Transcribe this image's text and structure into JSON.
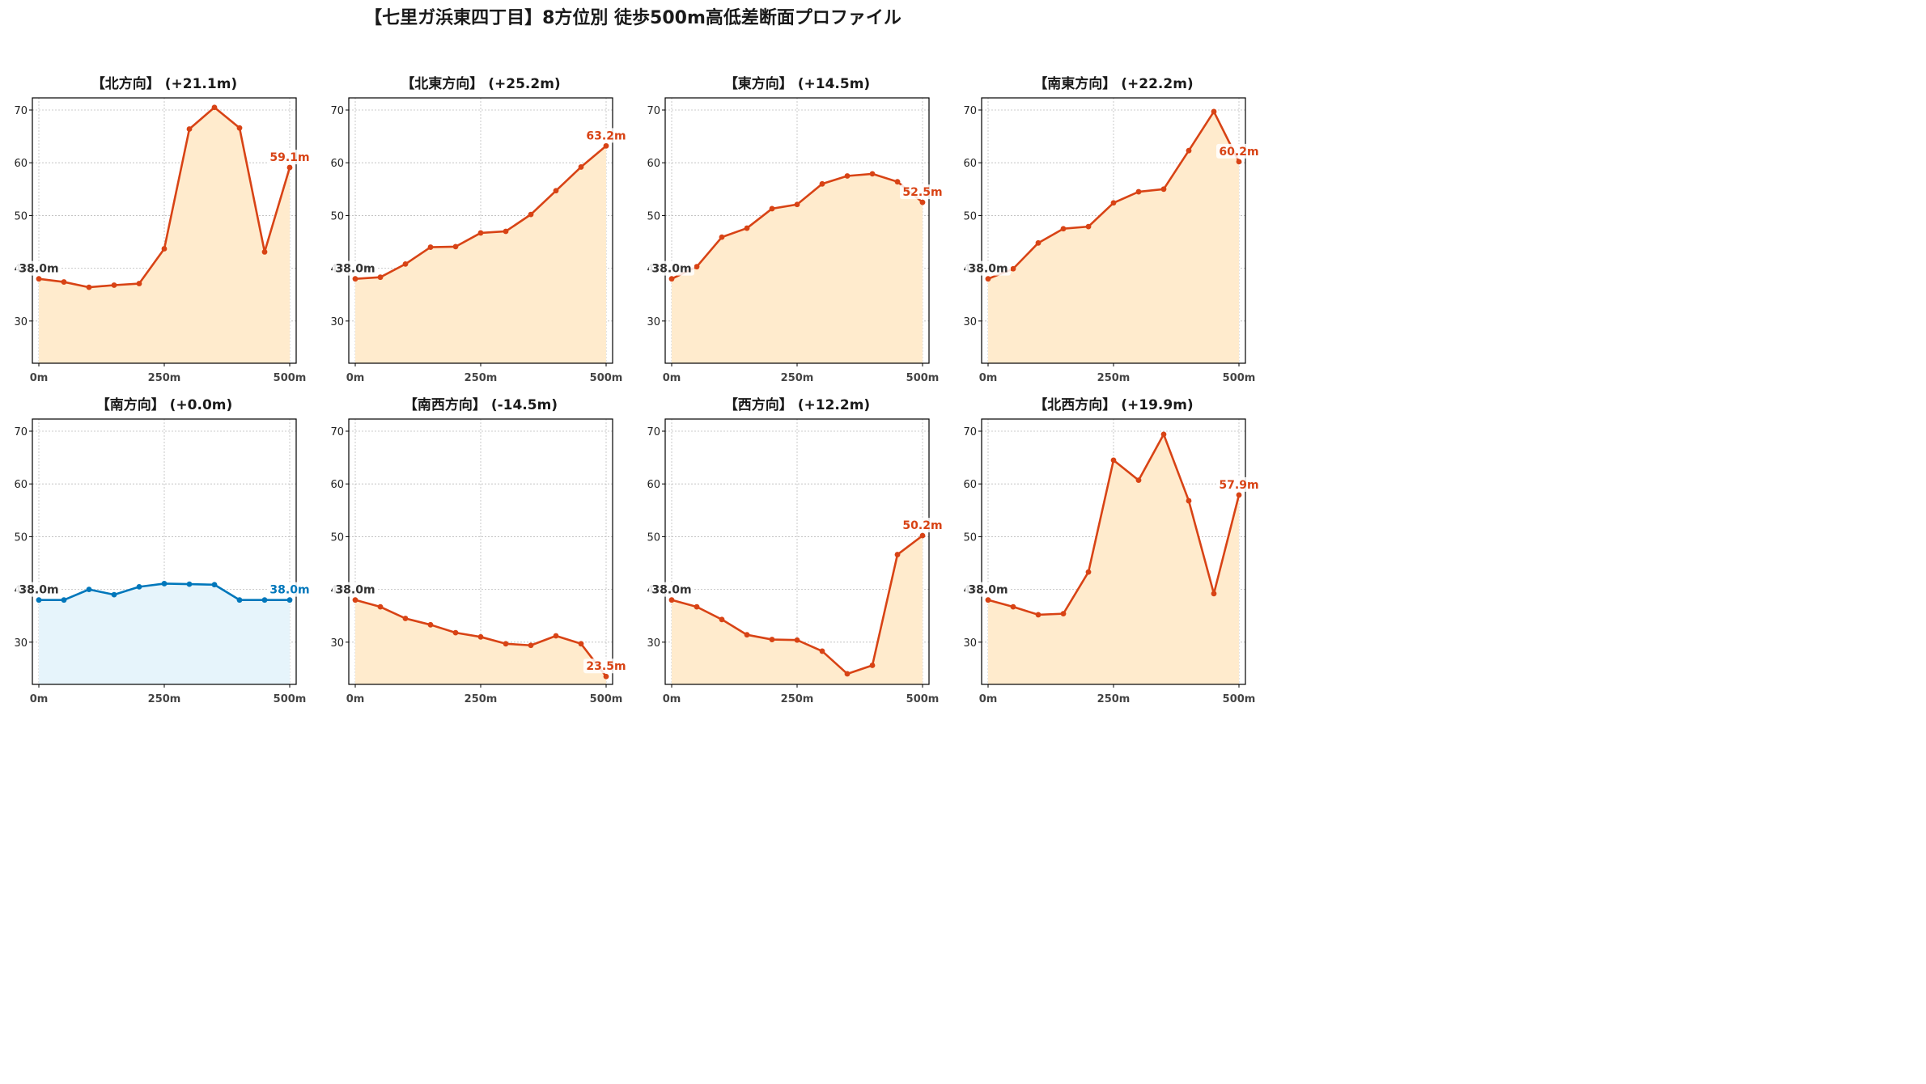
{
  "figure_title": "【七里ガ浜東四丁目】8方位別 徒歩500m高低差断面プロファイル",
  "colors": {
    "up_line": "#d84315",
    "up_fill": "#ffebcd",
    "flat_line": "#0077bb",
    "flat_fill": "#e6f4fb",
    "grid": "#bbbbbb",
    "start_label": "#333333"
  },
  "chart_data": [
    {
      "type": "area",
      "title": "【北方向】 (+21.1m)",
      "style": "up",
      "x": [
        0,
        50,
        100,
        150,
        200,
        250,
        300,
        350,
        400,
        450,
        500
      ],
      "y": [
        38.0,
        37.4,
        36.4,
        36.8,
        37.1,
        43.7,
        66.4,
        70.5,
        66.6,
        43.1,
        59.1
      ],
      "start_label": "38.0m",
      "end_label": "59.1m",
      "xticks": [
        0,
        250,
        500
      ],
      "xtick_labels": [
        "0m",
        "250m",
        "500m"
      ],
      "yticks": [
        30,
        40,
        50,
        60,
        70
      ],
      "ytick_labels": [
        "30",
        "40",
        "50",
        "60",
        "70"
      ],
      "ylim": [
        22,
        72.3
      ],
      "grid": true
    },
    {
      "type": "area",
      "title": "【北東方向】 (+25.2m)",
      "style": "up",
      "x": [
        0,
        50,
        100,
        150,
        200,
        250,
        300,
        350,
        400,
        450,
        500
      ],
      "y": [
        38.0,
        38.3,
        40.8,
        44.0,
        44.1,
        46.7,
        47.0,
        50.2,
        54.7,
        59.2,
        63.2
      ],
      "start_label": "38.0m",
      "end_label": "63.2m",
      "xticks": [
        0,
        250,
        500
      ],
      "xtick_labels": [
        "0m",
        "250m",
        "500m"
      ],
      "yticks": [
        30,
        40,
        50,
        60,
        70
      ],
      "ytick_labels": [
        "30",
        "40",
        "50",
        "60",
        "70"
      ],
      "ylim": [
        22,
        72.3
      ],
      "grid": true
    },
    {
      "type": "area",
      "title": "【東方向】 (+14.5m)",
      "style": "up",
      "x": [
        0,
        50,
        100,
        150,
        200,
        250,
        300,
        350,
        400,
        450,
        500
      ],
      "y": [
        38.0,
        40.3,
        45.9,
        47.6,
        51.3,
        52.1,
        56.0,
        57.5,
        57.9,
        56.4,
        52.5
      ],
      "start_label": "38.0m",
      "end_label": "52.5m",
      "xticks": [
        0,
        250,
        500
      ],
      "xtick_labels": [
        "0m",
        "250m",
        "500m"
      ],
      "yticks": [
        30,
        40,
        50,
        60,
        70
      ],
      "ytick_labels": [
        "30",
        "40",
        "50",
        "60",
        "70"
      ],
      "ylim": [
        22,
        72.3
      ],
      "grid": true
    },
    {
      "type": "area",
      "title": "【南東方向】 (+22.2m)",
      "style": "up",
      "x": [
        0,
        50,
        100,
        150,
        200,
        250,
        300,
        350,
        400,
        450,
        500
      ],
      "y": [
        38.0,
        39.9,
        44.8,
        47.5,
        47.9,
        52.4,
        54.5,
        55.0,
        62.3,
        69.7,
        60.2
      ],
      "start_label": "38.0m",
      "end_label": "60.2m",
      "xticks": [
        0,
        250,
        500
      ],
      "xtick_labels": [
        "0m",
        "250m",
        "500m"
      ],
      "yticks": [
        30,
        40,
        50,
        60,
        70
      ],
      "ytick_labels": [
        "30",
        "40",
        "50",
        "60",
        "70"
      ],
      "ylim": [
        22,
        72.3
      ],
      "grid": true
    },
    {
      "type": "area",
      "title": "【南方向】 (+0.0m)",
      "style": "flat",
      "x": [
        0,
        50,
        100,
        150,
        200,
        250,
        300,
        350,
        400,
        450,
        500
      ],
      "y": [
        38.0,
        38.0,
        40.0,
        39.0,
        40.5,
        41.1,
        41.0,
        40.9,
        38.0,
        38.0,
        38.0
      ],
      "start_label": "38.0m",
      "end_label": "38.0m",
      "xticks": [
        0,
        250,
        500
      ],
      "xtick_labels": [
        "0m",
        "250m",
        "500m"
      ],
      "yticks": [
        30,
        40,
        50,
        60,
        70
      ],
      "ytick_labels": [
        "30",
        "40",
        "50",
        "60",
        "70"
      ],
      "ylim": [
        22,
        72.3
      ],
      "grid": true
    },
    {
      "type": "area",
      "title": "【南西方向】 (-14.5m)",
      "style": "up",
      "x": [
        0,
        50,
        100,
        150,
        200,
        250,
        300,
        350,
        400,
        450,
        500
      ],
      "y": [
        38.0,
        36.7,
        34.5,
        33.3,
        31.8,
        31.0,
        29.7,
        29.4,
        31.2,
        29.7,
        23.5
      ],
      "start_label": "38.0m",
      "end_label": "23.5m",
      "xticks": [
        0,
        250,
        500
      ],
      "xtick_labels": [
        "0m",
        "250m",
        "500m"
      ],
      "yticks": [
        30,
        40,
        50,
        60,
        70
      ],
      "ytick_labels": [
        "30",
        "40",
        "50",
        "60",
        "70"
      ],
      "ylim": [
        22,
        72.3
      ],
      "grid": true
    },
    {
      "type": "area",
      "title": "【西方向】 (+12.2m)",
      "style": "up",
      "x": [
        0,
        50,
        100,
        150,
        200,
        250,
        300,
        350,
        400,
        450,
        500
      ],
      "y": [
        38.0,
        36.7,
        34.3,
        31.4,
        30.5,
        30.4,
        28.3,
        24.0,
        25.6,
        46.6,
        50.2
      ],
      "start_label": "38.0m",
      "end_label": "50.2m",
      "xticks": [
        0,
        250,
        500
      ],
      "xtick_labels": [
        "0m",
        "250m",
        "500m"
      ],
      "yticks": [
        30,
        40,
        50,
        60,
        70
      ],
      "ytick_labels": [
        "30",
        "40",
        "50",
        "60",
        "70"
      ],
      "ylim": [
        22,
        72.3
      ],
      "grid": true
    },
    {
      "type": "area",
      "title": "【北西方向】 (+19.9m)",
      "style": "up",
      "x": [
        0,
        50,
        100,
        150,
        200,
        250,
        300,
        350,
        400,
        450,
        500
      ],
      "y": [
        38.0,
        36.7,
        35.2,
        35.4,
        43.3,
        64.5,
        60.7,
        69.4,
        56.8,
        39.2,
        57.9
      ],
      "start_label": "38.0m",
      "end_label": "57.9m",
      "xticks": [
        0,
        250,
        500
      ],
      "xtick_labels": [
        "0m",
        "250m",
        "500m"
      ],
      "yticks": [
        30,
        40,
        50,
        60,
        70
      ],
      "ytick_labels": [
        "30",
        "40",
        "50",
        "60",
        "70"
      ],
      "ylim": [
        22,
        72.3
      ],
      "grid": true
    }
  ]
}
